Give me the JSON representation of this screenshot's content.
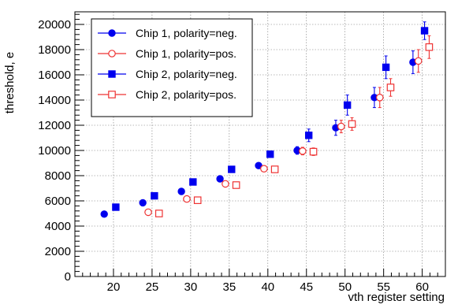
{
  "chart_data": {
    "type": "scatter",
    "xlabel": "vth register setting",
    "ylabel": "threshold, e",
    "xlim": [
      15,
      63
    ],
    "ylim": [
      0,
      21000
    ],
    "xticks": [
      20,
      25,
      30,
      35,
      40,
      45,
      50,
      55,
      60
    ],
    "yticks": [
      0,
      2000,
      4000,
      6000,
      8000,
      10000,
      12000,
      14000,
      16000,
      18000,
      20000
    ],
    "grid": true,
    "legend_position": "top-left",
    "series": [
      {
        "name": "Chip 1, polarity=neg.",
        "color": "#0000ee",
        "marker": "filled-circle",
        "x": [
          20,
          25,
          30,
          35,
          40,
          45,
          50,
          55,
          60
        ],
        "y": [
          4950,
          5850,
          6750,
          7750,
          8800,
          10000,
          11800,
          14200,
          17000
        ],
        "err": [
          0,
          100,
          150,
          200,
          200,
          300,
          600,
          800,
          900
        ]
      },
      {
        "name": "Chip 1, polarity=pos.",
        "color": "#ee3333",
        "marker": "open-circle",
        "x": [
          25,
          30,
          35,
          40,
          45,
          50,
          55,
          60
        ],
        "y": [
          5100,
          6150,
          7350,
          8550,
          9950,
          11900,
          14200,
          17100
        ],
        "err": [
          150,
          150,
          200,
          200,
          300,
          500,
          800,
          900
        ]
      },
      {
        "name": "Chip 2, polarity=neg.",
        "color": "#0000ee",
        "marker": "filled-square",
        "x": [
          20,
          25,
          30,
          35,
          40,
          45,
          50,
          55,
          60
        ],
        "y": [
          5500,
          6400,
          7500,
          8500,
          9700,
          11200,
          13600,
          16600,
          19500
        ],
        "err": [
          0,
          100,
          150,
          200,
          250,
          500,
          800,
          900,
          700
        ]
      },
      {
        "name": "Chip 2, polarity=pos.",
        "color": "#ee3333",
        "marker": "open-square",
        "x": [
          25,
          30,
          35,
          40,
          45,
          50,
          55,
          60
        ],
        "y": [
          5000,
          6050,
          7250,
          8500,
          9900,
          12100,
          15000,
          18200
        ],
        "err": [
          100,
          150,
          200,
          200,
          300,
          500,
          700,
          900
        ]
      }
    ]
  }
}
